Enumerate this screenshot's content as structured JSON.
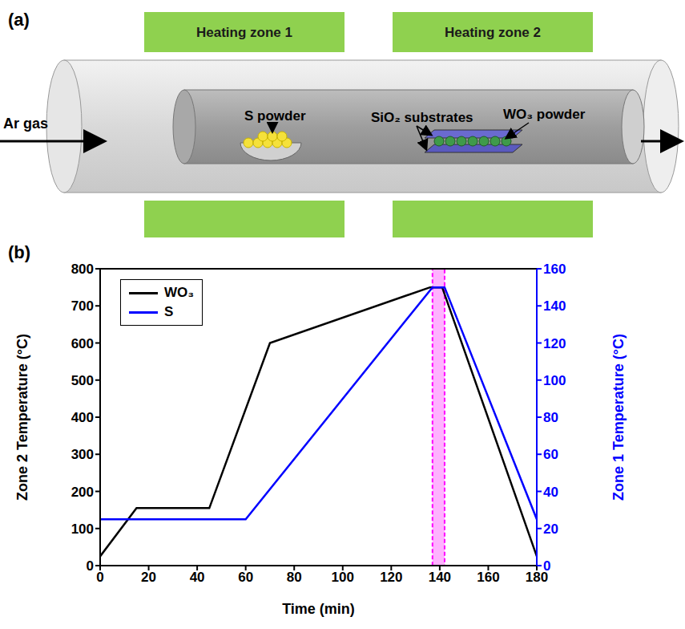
{
  "diagram": {
    "label": "(a)",
    "zones": [
      "Heating zone 1",
      "Heating zone 2"
    ],
    "gas": "Ar gas",
    "source": "S powder",
    "substrates": "SiO₂ substrates",
    "precursor": "WO₃ powder"
  },
  "chart_data": {
    "type": "line",
    "panel_label": "(b)",
    "xlabel": "Time (min)",
    "ylabel": "Zone 2 Temperature (°C)",
    "y2label": "Zone 1 Temperature (°C)",
    "xlim": [
      0,
      180
    ],
    "xticks": [
      0,
      20,
      40,
      60,
      80,
      100,
      120,
      140,
      160,
      180
    ],
    "ylim": [
      0,
      800
    ],
    "yticks": [
      0,
      100,
      200,
      300,
      400,
      500,
      600,
      700,
      800
    ],
    "y2lim": [
      0,
      160
    ],
    "y2ticks": [
      0,
      20,
      40,
      60,
      80,
      100,
      120,
      140,
      160
    ],
    "grid": false,
    "legend": "upper left",
    "series": [
      {
        "name": "WO₃",
        "color": "#000000",
        "x": [
          0,
          15,
          45,
          70,
          136,
          141,
          180
        ],
        "values": [
          25,
          155,
          155,
          600,
          750,
          750,
          25
        ]
      },
      {
        "name": "S",
        "color": "#0000ff",
        "axis": "y2",
        "x": [
          0,
          60,
          137,
          142,
          180
        ],
        "values": [
          25,
          25,
          150,
          150,
          25
        ]
      }
    ],
    "annotations": [
      {
        "type": "band",
        "x": [
          137,
          142
        ],
        "color": "#ff00ff"
      }
    ]
  }
}
